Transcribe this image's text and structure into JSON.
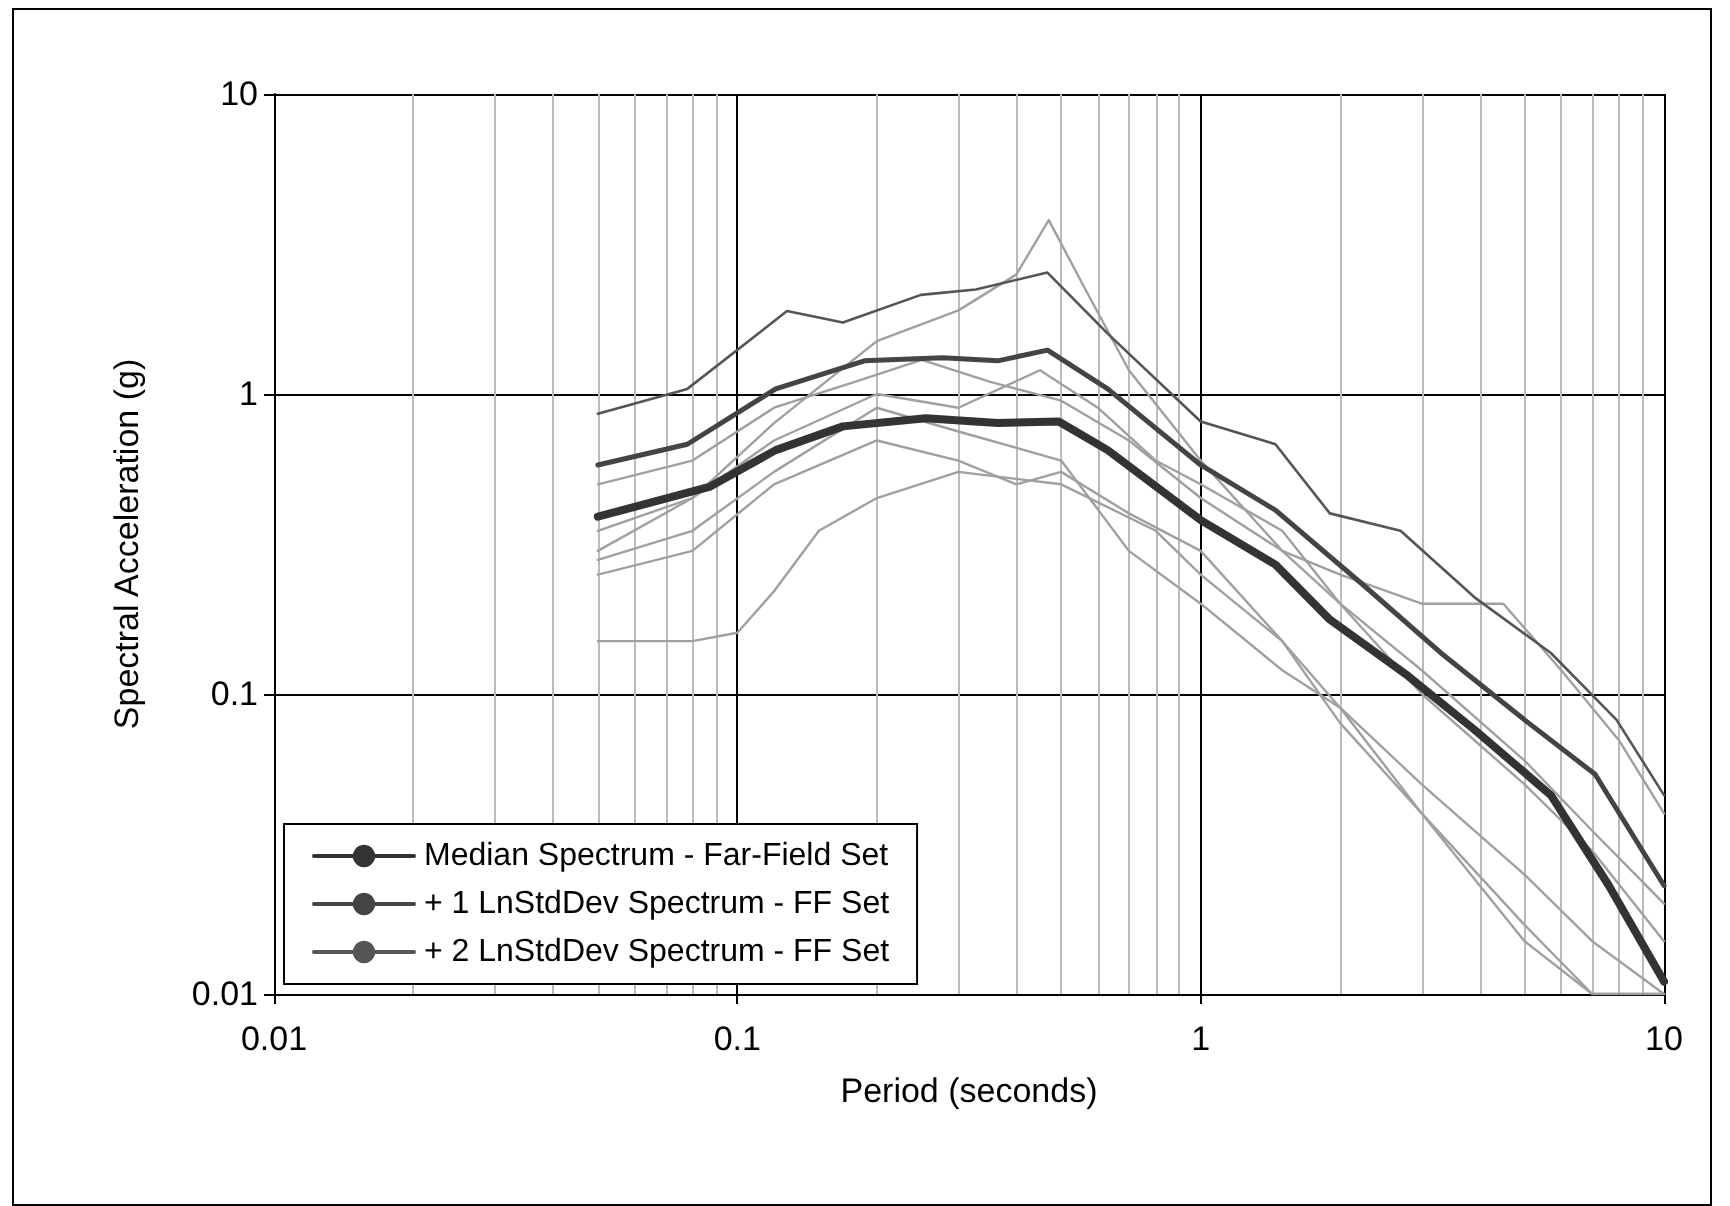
{
  "chart_data": {
    "type": "line",
    "xlabel": "Period (seconds)",
    "ylabel": "Spectral Acceleration (g)",
    "log": "xy",
    "xlim": [
      0.01,
      10
    ],
    "ylim": [
      0.01,
      10
    ],
    "xticks": [
      0.01,
      0.1,
      1,
      10
    ],
    "yticks": [
      0.01,
      0.1,
      1,
      10
    ],
    "grid": true,
    "legend": "bottom left",
    "marker": "none",
    "series": [
      {
        "name": "Median Spectrum - Far-Field Set",
        "color": "#333333",
        "x": [
          0.05,
          0.087,
          0.121,
          0.169,
          0.255,
          0.365,
          0.494,
          0.63,
          1,
          1.45,
          1.9,
          2.8,
          3.9,
          5.7,
          7.6,
          10
        ],
        "values": [
          0.39,
          0.49,
          0.65,
          0.78,
          0.83,
          0.8,
          0.81,
          0.65,
          0.38,
          0.27,
          0.177,
          0.115,
          0.076,
          0.046,
          0.023,
          0.011
        ]
      },
      {
        "name": "+ 1 LnStdDev Spectrum - FF Set",
        "color": "#444444",
        "x": [
          0.05,
          0.078,
          0.121,
          0.188,
          0.277,
          0.365,
          0.467,
          0.63,
          1,
          1.45,
          2.25,
          3.3,
          5,
          7.1,
          10
        ],
        "values": [
          0.58,
          0.68,
          1.04,
          1.29,
          1.32,
          1.29,
          1.4,
          1.04,
          0.58,
          0.41,
          0.23,
          0.137,
          0.082,
          0.054,
          0.023
        ]
      },
      {
        "name": "+ 2 LnStdDev Spectrum - FF Set",
        "color": "#555555",
        "x": [
          0.05,
          0.078,
          0.128,
          0.169,
          0.249,
          0.327,
          0.467,
          0.63,
          1,
          1.45,
          1.9,
          2.7,
          3.9,
          5.7,
          7.9,
          10
        ],
        "values": [
          0.86,
          1.04,
          1.89,
          1.73,
          2.14,
          2.23,
          2.54,
          1.59,
          0.81,
          0.68,
          0.4,
          0.35,
          0.21,
          0.137,
          0.082,
          0.046
        ]
      },
      {
        "color": "#a0a0a0",
        "x": [
          0.05,
          0.08,
          0.12,
          0.2,
          0.3,
          0.4,
          0.47,
          0.55,
          0.7,
          1,
          1.5,
          2,
          3,
          5,
          7,
          10
        ],
        "values": [
          0.3,
          0.45,
          0.8,
          1.5,
          1.9,
          2.5,
          3.8,
          2.4,
          1.2,
          0.6,
          0.3,
          0.2,
          0.1,
          0.05,
          0.03,
          0.015
        ]
      },
      {
        "color": "#a0a0a0",
        "x": [
          0.05,
          0.08,
          0.1,
          0.12,
          0.15,
          0.2,
          0.3,
          0.5,
          0.8,
          1,
          1.5,
          2,
          3,
          5,
          7,
          10
        ],
        "values": [
          0.15,
          0.15,
          0.16,
          0.22,
          0.35,
          0.45,
          0.55,
          0.5,
          0.35,
          0.25,
          0.15,
          0.09,
          0.04,
          0.017,
          0.01,
          0.01
        ]
      },
      {
        "color": "#a0a0a0",
        "x": [
          0.05,
          0.08,
          0.12,
          0.18,
          0.25,
          0.35,
          0.5,
          0.7,
          1,
          1.5,
          2,
          3,
          4.5,
          6,
          8,
          10
        ],
        "values": [
          0.5,
          0.6,
          0.9,
          1.1,
          1.3,
          1.1,
          0.95,
          0.7,
          0.45,
          0.3,
          0.25,
          0.2,
          0.2,
          0.12,
          0.07,
          0.04
        ]
      },
      {
        "color": "#a0a0a0",
        "x": [
          0.05,
          0.08,
          0.12,
          0.2,
          0.3,
          0.4,
          0.5,
          0.7,
          1,
          1.5,
          2,
          3,
          5,
          7,
          10
        ],
        "values": [
          0.25,
          0.3,
          0.5,
          0.7,
          0.6,
          0.5,
          0.55,
          0.4,
          0.3,
          0.15,
          0.08,
          0.04,
          0.015,
          0.01,
          0.01
        ]
      },
      {
        "color": "#a0a0a0",
        "x": [
          0.05,
          0.08,
          0.12,
          0.2,
          0.3,
          0.45,
          0.6,
          0.8,
          1,
          1.5,
          2,
          3,
          5,
          7,
          10
        ],
        "values": [
          0.35,
          0.45,
          0.7,
          1.0,
          0.9,
          1.2,
          0.9,
          0.6,
          0.5,
          0.35,
          0.2,
          0.12,
          0.06,
          0.035,
          0.02
        ]
      },
      {
        "color": "#a0a0a0",
        "x": [
          0.05,
          0.08,
          0.12,
          0.2,
          0.3,
          0.5,
          0.7,
          1,
          1.5,
          2,
          3,
          5,
          7,
          10
        ],
        "values": [
          0.28,
          0.35,
          0.55,
          0.9,
          0.75,
          0.6,
          0.3,
          0.2,
          0.12,
          0.09,
          0.05,
          0.025,
          0.015,
          0.01
        ]
      }
    ]
  }
}
